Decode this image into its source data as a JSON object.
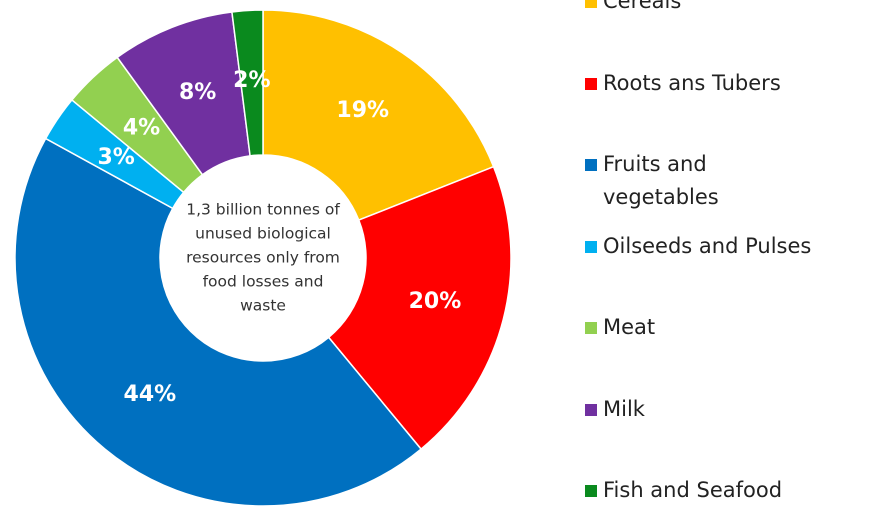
{
  "chart_data": {
    "type": "donut",
    "center_text": [
      "1,3 billion tonnes of",
      "unused biological",
      "resources only from",
      "food losses and",
      "waste"
    ],
    "categories": [
      "Cereals",
      "Roots ans Tubers",
      "Fruits and vegetables",
      "Oilseeds and Pulses",
      "Meat",
      "Milk",
      "Fish and Seafood"
    ],
    "values": [
      19,
      20,
      44,
      3,
      4,
      8,
      2
    ],
    "value_labels": [
      "19%",
      "20%",
      "44%",
      "3%",
      "4%",
      "8%",
      "2%"
    ],
    "colors": [
      "#ffc000",
      "#ff0000",
      "#0070c0",
      "#00b0f0",
      "#92d050",
      "#7030a0",
      "#0a8a1e"
    ],
    "legend": "right"
  }
}
